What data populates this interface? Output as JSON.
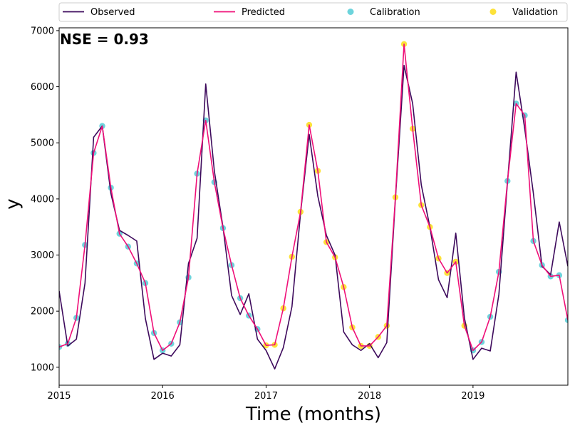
{
  "chart_data": {
    "type": "line",
    "title": "",
    "xlabel": "Time (months)",
    "ylabel": "y",
    "annotation": "NSE = 0.93",
    "x_start": "2015-01",
    "x_end": "2019-12",
    "xlim": [
      "2015-01",
      "2019-12"
    ],
    "ylim": [
      680,
      7050
    ],
    "x_ticks": [
      "2015",
      "2016",
      "2017",
      "2018",
      "2019"
    ],
    "y_ticks": [
      1000,
      2000,
      3000,
      4000,
      5000,
      6000,
      7000
    ],
    "y_tick_labels": [
      "1000",
      "2000",
      "3000",
      "4000",
      "5000",
      "6000",
      "7000"
    ],
    "legend": {
      "placement": "top, above plot",
      "entries": [
        "Observed",
        "Predicted",
        "Calibration",
        "Validation"
      ]
    },
    "colors": {
      "Observed": "#3d0a5c",
      "Predicted": "#ef0f78",
      "Calibration": "#6dd4dc",
      "Validation": "#fde23a"
    },
    "x": [
      "2015-01",
      "2015-02",
      "2015-03",
      "2015-04",
      "2015-05",
      "2015-06",
      "2015-07",
      "2015-08",
      "2015-09",
      "2015-10",
      "2015-11",
      "2015-12",
      "2016-01",
      "2016-02",
      "2016-03",
      "2016-04",
      "2016-05",
      "2016-06",
      "2016-07",
      "2016-08",
      "2016-09",
      "2016-10",
      "2016-11",
      "2016-12",
      "2017-01",
      "2017-02",
      "2017-03",
      "2017-04",
      "2017-05",
      "2017-06",
      "2017-07",
      "2017-08",
      "2017-09",
      "2017-10",
      "2017-11",
      "2017-12",
      "2018-01",
      "2018-02",
      "2018-03",
      "2018-04",
      "2018-05",
      "2018-06",
      "2018-07",
      "2018-08",
      "2018-09",
      "2018-10",
      "2018-11",
      "2018-12",
      "2019-01",
      "2019-02",
      "2019-03",
      "2019-04",
      "2019-05",
      "2019-06",
      "2019-07",
      "2019-08",
      "2019-09",
      "2019-10",
      "2019-11",
      "2019-12"
    ],
    "series": [
      {
        "name": "Observed",
        "kind": "line",
        "values": [
          2360,
          1380,
          1500,
          2500,
          5100,
          5300,
          4100,
          3440,
          3350,
          3250,
          1870,
          1140,
          1250,
          1200,
          1400,
          2850,
          3300,
          6050,
          4500,
          3500,
          2280,
          1940,
          2310,
          1500,
          1300,
          970,
          1350,
          2080,
          3750,
          5150,
          4050,
          3350,
          3000,
          1630,
          1400,
          1300,
          1420,
          1170,
          1440,
          4000,
          6380,
          5700,
          4250,
          3500,
          2560,
          2240,
          3390,
          1880,
          1140,
          1340,
          1290,
          2300,
          4300,
          6260,
          5250,
          4100,
          2800,
          2650,
          3590,
          2800
        ]
      },
      {
        "name": "Predicted",
        "kind": "line",
        "values": [
          1360,
          1420,
          1880,
          3180,
          4820,
          5300,
          4200,
          3380,
          3150,
          2850,
          2500,
          1610,
          1300,
          1420,
          1800,
          2600,
          4450,
          5400,
          4300,
          3480,
          2820,
          2230,
          1920,
          1680,
          1390,
          1400,
          2050,
          2970,
          3770,
          5320,
          4500,
          3230,
          2960,
          2430,
          1710,
          1380,
          1380,
          1540,
          1740,
          4030,
          6760,
          5250,
          3890,
          3500,
          2940,
          2680,
          2880,
          1740,
          1300,
          1450,
          1900,
          2700,
          4320,
          5700,
          5490,
          3250,
          2820,
          2620,
          2640,
          1840
        ]
      },
      {
        "name": "Calibration",
        "kind": "points",
        "x": [
          "2015-01",
          "2015-02",
          "2015-03",
          "2015-04",
          "2015-05",
          "2015-06",
          "2015-07",
          "2015-08",
          "2015-09",
          "2015-10",
          "2015-11",
          "2015-12",
          "2016-01",
          "2016-02",
          "2016-03",
          "2016-04",
          "2016-05",
          "2016-06",
          "2016-07",
          "2016-08",
          "2016-09",
          "2016-10",
          "2016-11",
          "2016-12",
          "2019-01",
          "2019-02",
          "2019-03",
          "2019-04",
          "2019-05",
          "2019-06",
          "2019-07",
          "2019-08",
          "2019-09",
          "2019-10",
          "2019-11",
          "2019-12"
        ],
        "values": [
          1360,
          1420,
          1880,
          3180,
          4820,
          5300,
          4200,
          3380,
          3150,
          2850,
          2500,
          1610,
          1300,
          1420,
          1800,
          2600,
          4450,
          5400,
          4300,
          3480,
          2820,
          2230,
          1920,
          1680,
          1300,
          1450,
          1900,
          2700,
          4320,
          5700,
          5490,
          3250,
          2820,
          2620,
          2640,
          1840
        ]
      },
      {
        "name": "Validation",
        "kind": "points",
        "x": [
          "2017-01",
          "2017-02",
          "2017-03",
          "2017-04",
          "2017-05",
          "2017-06",
          "2017-07",
          "2017-08",
          "2017-09",
          "2017-10",
          "2017-11",
          "2017-12",
          "2018-01",
          "2018-02",
          "2018-03",
          "2018-04",
          "2018-05",
          "2018-06",
          "2018-07",
          "2018-08",
          "2018-09",
          "2018-10",
          "2018-11",
          "2018-12"
        ],
        "values": [
          1390,
          1400,
          2050,
          2970,
          3770,
          5320,
          4500,
          3230,
          2960,
          2430,
          1710,
          1380,
          1380,
          1540,
          1740,
          4030,
          6760,
          5250,
          3890,
          3500,
          2940,
          2680,
          2880,
          1740
        ]
      }
    ]
  }
}
